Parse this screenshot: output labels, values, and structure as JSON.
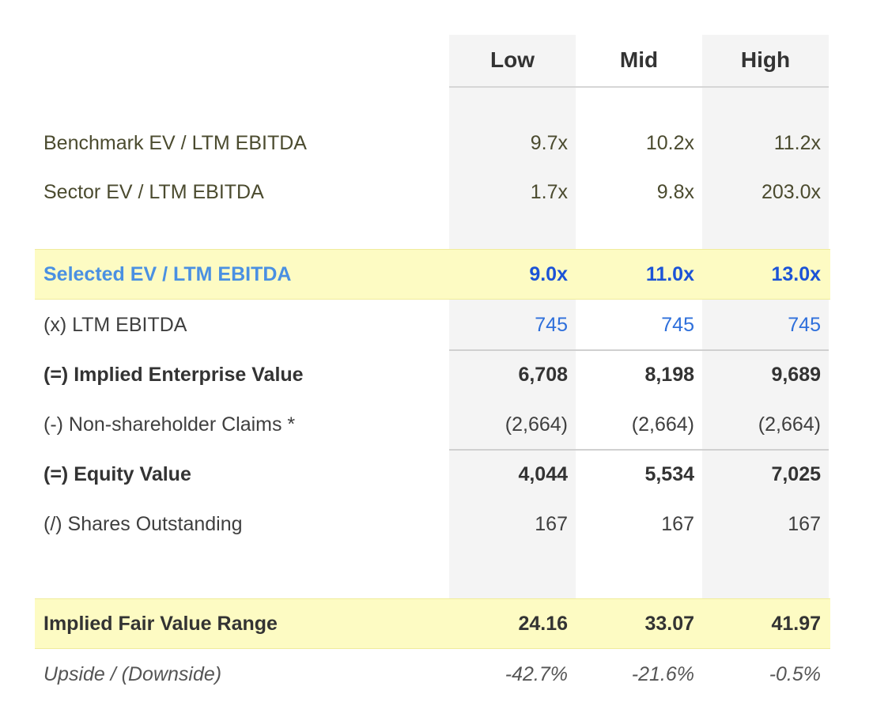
{
  "columns": {
    "low": "Low",
    "mid": "Mid",
    "high": "High"
  },
  "rows": {
    "benchmark": {
      "label": "Benchmark EV / LTM EBITDA",
      "low": "9.7x",
      "mid": "10.2x",
      "high": "11.2x"
    },
    "sector": {
      "label": "Sector EV / LTM EBITDA",
      "low": "1.7x",
      "mid": "9.8x",
      "high": "203.0x"
    },
    "selected": {
      "label": "Selected EV / LTM EBITDA",
      "low": "9.0x",
      "mid": "11.0x",
      "high": "13.0x"
    },
    "ltm_ebitda": {
      "label": "(x) LTM EBITDA",
      "low": "745",
      "mid": "745",
      "high": "745"
    },
    "implied_ev": {
      "label": "(=) Implied Enterprise Value",
      "low": "6,708",
      "mid": "8,198",
      "high": "9,689"
    },
    "claims": {
      "label": "(-) Non-shareholder Claims *",
      "low": "(2,664)",
      "mid": "(2,664)",
      "high": "(2,664)"
    },
    "equity": {
      "label": "(=) Equity Value",
      "low": "4,044",
      "mid": "5,534",
      "high": "7,025"
    },
    "shares": {
      "label": "(/) Shares Outstanding",
      "low": "167",
      "mid": "167",
      "high": "167"
    },
    "fair_value": {
      "label": "Implied Fair Value Range",
      "low": "24.16",
      "mid": "33.07",
      "high": "41.97"
    },
    "upside": {
      "label": "Upside / (Downside)",
      "low": "-42.7%",
      "mid": "-21.6%",
      "high": "-0.5%"
    }
  },
  "colors": {
    "highlight": "#fdfbc3",
    "accent_blue": "#1c53d6",
    "label_blue": "#4a90e2",
    "column_shade": "#f4f4f4"
  }
}
